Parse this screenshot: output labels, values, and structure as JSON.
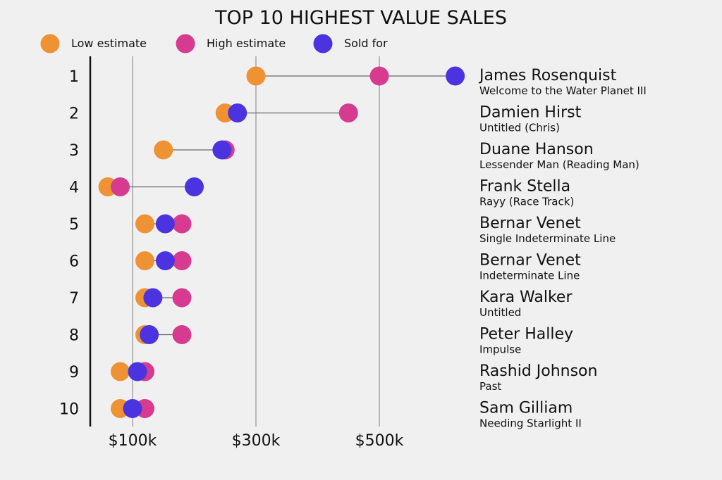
{
  "chart_data": {
    "type": "scatter",
    "title": "TOP 10 HIGHEST VALUE SALES",
    "x_tick_labels": [
      "$100k",
      "$300k",
      "$500k"
    ],
    "x_ticks": [
      100000,
      300000,
      500000
    ],
    "xlim": [
      30000,
      650000
    ],
    "grid": "vertical",
    "legend_placement": "top-left",
    "series": [
      {
        "name": "Low estimate",
        "color": "#ee9234",
        "values": [
          300000,
          250000,
          150000,
          60000,
          120000,
          120000,
          120000,
          120000,
          80000,
          80000
        ]
      },
      {
        "name": "High estimate",
        "color": "#d63b8f",
        "values": [
          500000,
          450000,
          250000,
          80000,
          180000,
          180000,
          180000,
          180000,
          120000,
          120000
        ]
      },
      {
        "name": "Sold for",
        "color": "#4b33e0",
        "values": [
          623000,
          270000,
          245000,
          200000,
          153000,
          153000,
          133000,
          127000,
          108000,
          100000
        ]
      }
    ],
    "rows": [
      {
        "rank": "1",
        "artist": "James Rosenquist",
        "work": "Welcome to the Water Planet III"
      },
      {
        "rank": "2",
        "artist": "Damien Hirst",
        "work": "Untitled (Chris)"
      },
      {
        "rank": "3",
        "artist": "Duane Hanson",
        "work": "Lessender Man (Reading Man)"
      },
      {
        "rank": "4",
        "artist": "Frank Stella",
        "work": "Rayy (Race Track)"
      },
      {
        "rank": "5",
        "artist": "Bernar Venet",
        "work": "Single Indeterminate Line"
      },
      {
        "rank": "6",
        "artist": "Bernar Venet",
        "work": "Indeterminate Line"
      },
      {
        "rank": "7",
        "artist": "Kara Walker",
        "work": "Untitled"
      },
      {
        "rank": "8",
        "artist": "Peter Halley",
        "work": "Impulse"
      },
      {
        "rank": "9",
        "artist": "Rashid Johnson",
        "work": "Past"
      },
      {
        "rank": "10",
        "artist": "Sam Gilliam",
        "work": "Needing Starlight II"
      }
    ]
  }
}
